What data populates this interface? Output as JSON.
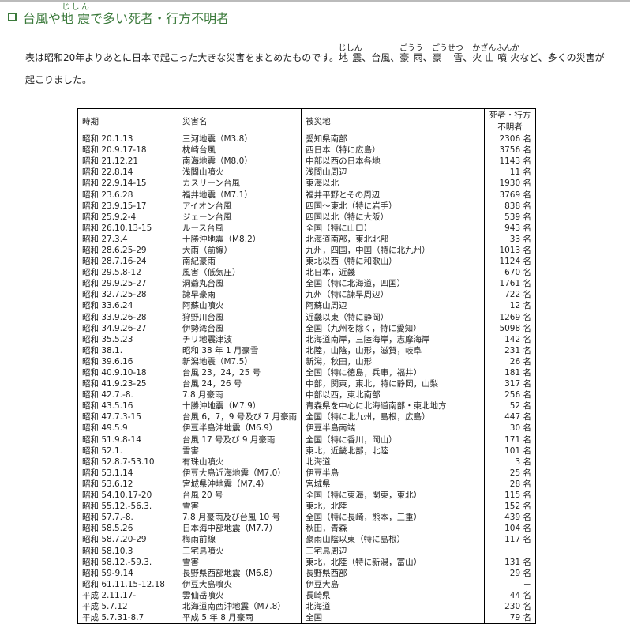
{
  "title": {
    "before": "台風や",
    "ruby_base": "地 震",
    "ruby_text": "じしん",
    "after": "で多い死者・行方不明者"
  },
  "intro": [
    {
      "text": "表は昭和20年よりあとに日本で起こった大きな災害をまとめたものです。"
    },
    {
      "text": "地 震",
      "ruby": "じしん"
    },
    {
      "text": "、台風、"
    },
    {
      "text": "豪 雨",
      "ruby": "ごうう"
    },
    {
      "text": "、"
    },
    {
      "text": "豪　雪",
      "ruby": "ごうせつ"
    },
    {
      "text": "、"
    },
    {
      "text": "火 山 噴 火",
      "ruby": "かざんふんか"
    },
    {
      "text": "など、多くの災害が起こりました。"
    }
  ],
  "table": {
    "headers": [
      "時期",
      "災害名",
      "被災地",
      "死者・行方不明者"
    ],
    "rows": [
      [
        "昭和 20.1.13",
        "三河地震（M3.8）",
        "愛知県南部",
        "2306 名"
      ],
      [
        "昭和 20.9.17-18",
        "枕崎台風",
        "西日本（特に広島）",
        "3756 名"
      ],
      [
        "昭和 21.12.21",
        "南海地震（M8.0）",
        "中部以西の日本各地",
        "1143 名"
      ],
      [
        "昭和 22.8.14",
        "浅間山噴火",
        "浅間山周辺",
        "11 名"
      ],
      [
        "昭和 22.9.14-15",
        "カスリーン台風",
        "東海以北",
        "1930 名"
      ],
      [
        "昭和 23.6.28",
        "福井地震（M7.1）",
        "福井平野とその周辺",
        "3769 名"
      ],
      [
        "昭和 23.9.15-17",
        "アイオン台風",
        "四国～東北（特に岩手）",
        "838 名"
      ],
      [
        "昭和 25.9.2-4",
        "ジェーン台風",
        "四国以北（特に大阪）",
        "539 名"
      ],
      [
        "昭和 26.10.13-15",
        "ルース台風",
        "全国（特に山口）",
        "943 名"
      ],
      [
        "昭和 27.3.4",
        "十勝沖地震（M8.2）",
        "北海道南部，東北北部",
        "33 名"
      ],
      [
        "昭和 28.6.25-29",
        "大雨（前線）",
        "九州，四国，中国（特に北九州）",
        "1013 名"
      ],
      [
        "昭和 28.7.16-24",
        "南紀豪雨",
        "東北以西（特に和歌山）",
        "1124 名"
      ],
      [
        "昭和 29.5.8-12",
        "風害（低気圧）",
        "北日本，近畿",
        "670 名"
      ],
      [
        "昭和 29.9.25-27",
        "洞爺丸台風",
        "全国（特に北海道，四国）",
        "1761 名"
      ],
      [
        "昭和 32.7.25-28",
        "諫早豪雨",
        "九州（特に諫早周辺）",
        "722 名"
      ],
      [
        "昭和 33.6.24",
        "阿蘇山噴火",
        "阿蘇山周辺",
        "12 名"
      ],
      [
        "昭和 33.9.26-28",
        "狩野川台風",
        "近畿以東（特に静岡）",
        "1269 名"
      ],
      [
        "昭和 34.9.26-27",
        "伊勢湾台風",
        "全国（九州を除く，特に愛知）",
        "5098 名"
      ],
      [
        "昭和 35.5.23",
        "チリ地震津波",
        "北海道南岸，三陸海岸，志摩海岸",
        "142 名"
      ],
      [
        "昭和 38.1.",
        "昭和 38 年 1 月豪雪",
        "北陸，山陰，山形，滋賀，岐阜",
        "231 名"
      ],
      [
        "昭和 39.6.16",
        "新潟地震（M7.5）",
        "新潟，秋田，山形",
        "26 名"
      ],
      [
        "昭和 40.9.10-18",
        "台風 23，24，25 号",
        "全国（特に徳島，兵庫，福井）",
        "181 名"
      ],
      [
        "昭和 41.9.23-25",
        "台風 24，26 号",
        "中部，関東，東北，特に静岡，山梨",
        "317 名"
      ],
      [
        "昭和 42.7.-8.",
        "7.8 月豪雨",
        "中部以西，東北南部",
        "256 名"
      ],
      [
        "昭和 43.5.16",
        "十勝沖地震（M7.9）",
        "青森県を中心に北海道南部・東北地方",
        "52 名"
      ],
      [
        "昭和 47.7.3-15",
        "台風 6，7，9 号及び 7 月豪雨",
        "全国（特に北九州，島根，広島）",
        "447 名"
      ],
      [
        "昭和 49.5.9",
        "伊豆半島沖地震（M6.9）",
        "伊豆半島南端",
        "30 名"
      ],
      [
        "昭和 51.9.8-14",
        "台風 17 号及び 9 月豪雨",
        "全国（特に香川，岡山）",
        "171 名"
      ],
      [
        "昭和 52.1.",
        "雪害",
        "東北，近畿北部，北陸",
        "101 名"
      ],
      [
        "昭和 52.8.7-53.10",
        "有珠山噴火",
        "北海道",
        "3 名"
      ],
      [
        "昭和 53.1.14",
        "伊豆大島近海地震（M7.0）",
        "伊豆半島",
        "25 名"
      ],
      [
        "昭和 53.6.12",
        "宮城県沖地震（M7.4）",
        "宮城県",
        "28 名"
      ],
      [
        "昭和 54.10.17-20",
        "台風 20 号",
        "全国（特に東海，関東，東北）",
        "115 名"
      ],
      [
        "昭和 55.12.-56.3.",
        "雪害",
        "東北，北陸",
        "152 名"
      ],
      [
        "昭和 57.7.-8.",
        "7.8 月豪雨及び台風 10 号",
        "全国（特に長崎，熊本，三重）",
        "439 名"
      ],
      [
        "昭和 58.5.26",
        "日本海中部地震（M7.7）",
        "秋田，青森",
        "104 名"
      ],
      [
        "昭和 58.7.20-29",
        "梅雨前線",
        "豪雨山陰以東（特に島根）",
        "117 名"
      ],
      [
        "昭和 58.10.3",
        "三宅島噴火",
        "三宅島周辺",
        "－"
      ],
      [
        "昭和 58.12.-59.3.",
        "雪害",
        "東北，北陸（特に新潟，富山）",
        "131 名"
      ],
      [
        "昭和 59-9.14",
        "長野県西部地震（M6.8）",
        "長野県西部",
        "29 名"
      ],
      [
        "昭和 61.11.15-12.18",
        "伊豆大島噴火",
        "伊豆大島",
        "－"
      ],
      [
        "平成 2.11.17-",
        "雲仙岳噴火",
        "長崎県",
        "44 名"
      ],
      [
        "平成 5.7.12",
        "北海道南西沖地震（M7.8）",
        "北海道",
        "230 名"
      ],
      [
        "平成 5.7.31-8.7",
        "平成 5 年 8 月豪雨",
        "全国",
        "79 名"
      ]
    ]
  },
  "colors": {
    "title": "#3b7a3b",
    "border": "#000000"
  },
  "icons": {
    "title_bullet": "hollow-square-icon"
  }
}
